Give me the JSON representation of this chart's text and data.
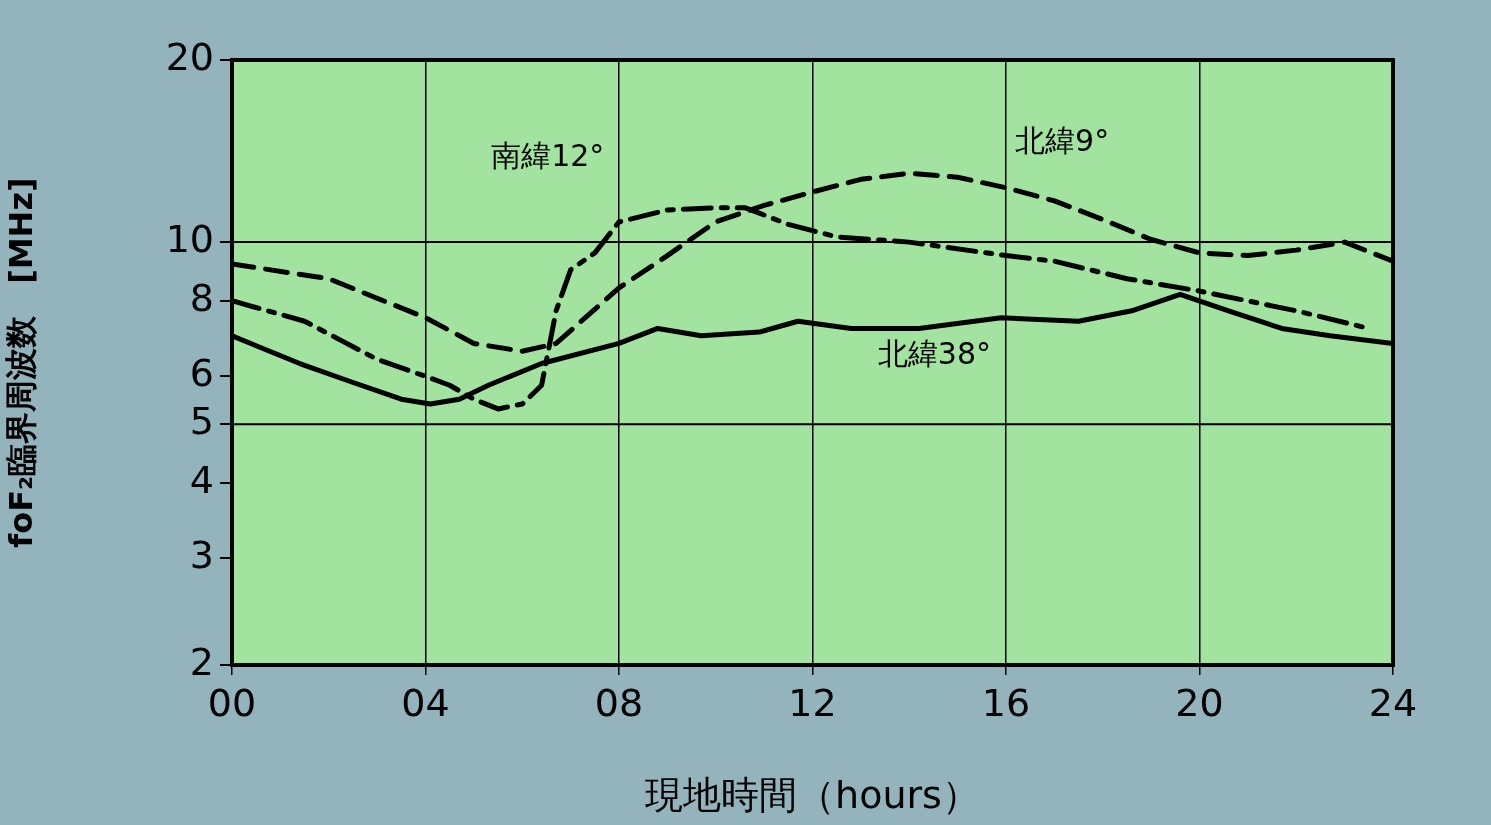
{
  "chart_data": {
    "type": "line",
    "xlabel": "現地時間（hours）",
    "ylabel": "foF₂臨界周波数　[MHz]",
    "xlim": [
      0,
      24
    ],
    "xticks": [
      {
        "value": 0,
        "label": "00"
      },
      {
        "value": 4,
        "label": "04"
      },
      {
        "value": 8,
        "label": "08"
      },
      12,
      16,
      20,
      24
    ],
    "ylim": [
      2,
      20
    ],
    "yticks": [
      2,
      3,
      4,
      5,
      6,
      8,
      10,
      20
    ],
    "log": "y",
    "grid": "x",
    "legend": false,
    "marker": "none",
    "ref_lines": [
      {
        "axis": "y",
        "value": 5,
        "label": null,
        "color": "#000000"
      },
      {
        "axis": "y",
        "value": 10,
        "label": null,
        "color": "#000000"
      }
    ],
    "series": [
      {
        "name": "北緯38°",
        "color": "#000000",
        "line_style": "solid",
        "x": [
          0,
          1.4,
          2.4,
          3.5,
          4.1,
          4.7,
          5.3,
          6.4,
          8,
          8.8,
          9.7,
          10.9,
          11.7,
          12.8,
          14.2,
          15.9,
          17.5,
          18.6,
          19.6,
          20.6,
          21.7,
          22.7,
          24
        ],
        "values": [
          7.0,
          6.3,
          5.9,
          5.5,
          5.4,
          5.5,
          5.8,
          6.3,
          6.8,
          7.2,
          7.0,
          7.1,
          7.4,
          7.2,
          7.2,
          7.5,
          7.4,
          7.7,
          8.2,
          7.7,
          7.2,
          7.0,
          6.8
        ]
      },
      {
        "name": "北緯9°",
        "color": "#000000",
        "line_style": "dashed",
        "x": [
          0,
          2,
          4,
          5,
          6,
          6.7,
          8,
          9,
          10,
          11,
          12,
          13,
          14,
          15,
          16,
          17,
          18,
          19,
          20,
          21,
          22,
          23,
          24
        ],
        "values": [
          9.2,
          8.7,
          7.5,
          6.8,
          6.6,
          6.8,
          8.4,
          9.5,
          10.8,
          11.5,
          12.1,
          12.7,
          13.0,
          12.8,
          12.3,
          11.7,
          10.9,
          10.1,
          9.6,
          9.5,
          9.7,
          10.0,
          9.3
        ]
      },
      {
        "name": "南緯12°",
        "color": "#000000",
        "line_style": "dashdot",
        "x": [
          0,
          1.5,
          3,
          4,
          4.5,
          5,
          5.5,
          6,
          6.4,
          6.7,
          7,
          7.5,
          8,
          9,
          10,
          10.6,
          11.5,
          12.5,
          14,
          16,
          17,
          18.5,
          20,
          22,
          23.5
        ],
        "values": [
          8.0,
          7.4,
          6.4,
          6.0,
          5.8,
          5.5,
          5.3,
          5.4,
          5.8,
          7.7,
          9.0,
          9.6,
          10.8,
          11.3,
          11.4,
          11.4,
          10.7,
          10.2,
          10.0,
          9.5,
          9.3,
          8.7,
          8.3,
          7.7,
          7.2
        ]
      }
    ]
  }
}
